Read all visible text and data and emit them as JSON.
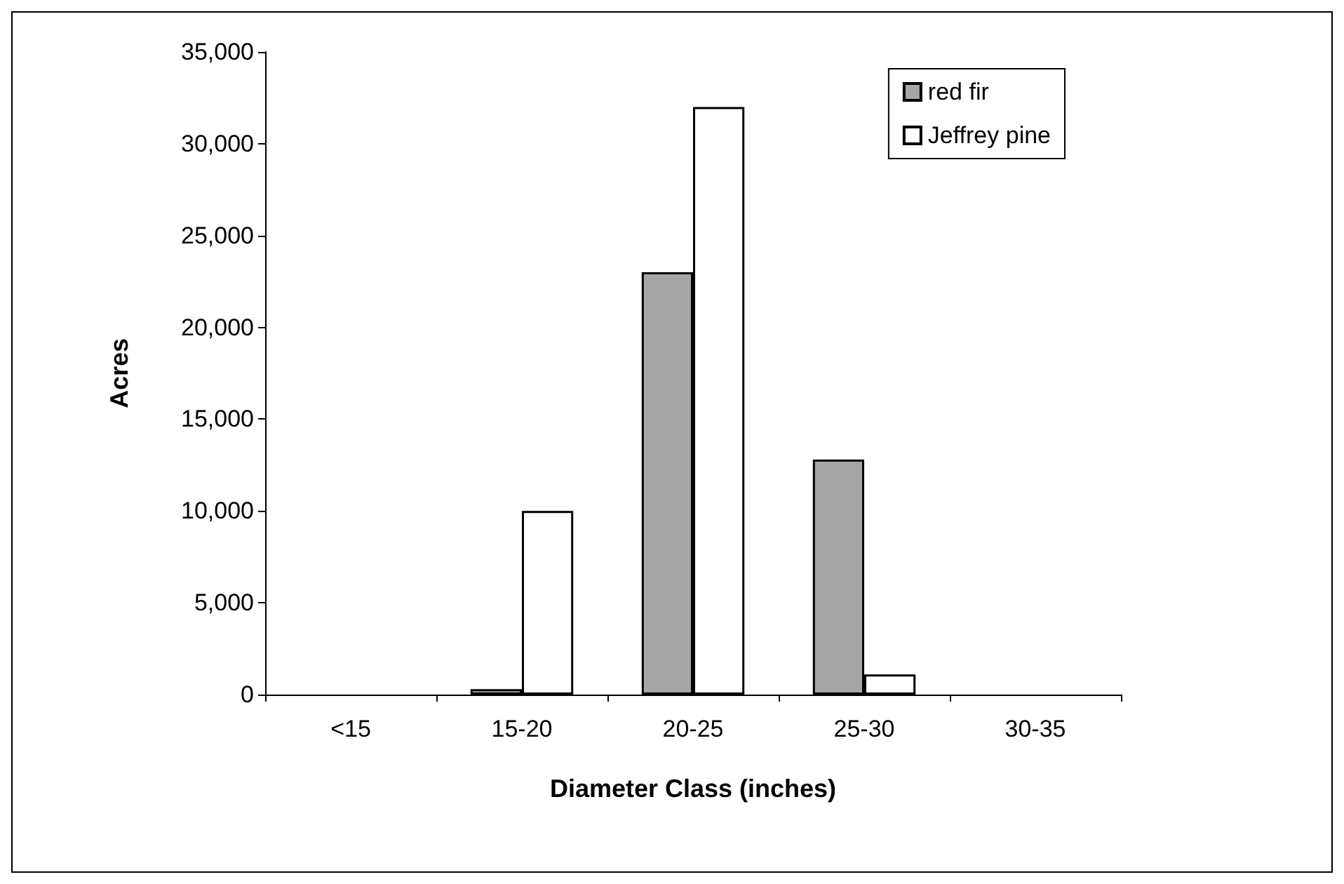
{
  "chart_data": {
    "type": "bar",
    "xlabel": "Diameter Class (inches)",
    "ylabel": "Acres",
    "categories": [
      "<15",
      "15-20",
      "20-25",
      "25-30",
      "30-35"
    ],
    "series": [
      {
        "name": "red fir",
        "color": "#a6a6a6",
        "values": [
          0,
          300,
          23000,
          12800,
          0
        ]
      },
      {
        "name": "Jeffrey pine",
        "color": "#ffffff",
        "values": [
          0,
          10000,
          32000,
          1100,
          0
        ]
      }
    ],
    "ylim": [
      0,
      35000
    ],
    "yticks": [
      {
        "value": 0,
        "label": "0"
      },
      {
        "value": 5000,
        "label": "5,000"
      },
      {
        "value": 10000,
        "label": "10,000"
      },
      {
        "value": 15000,
        "label": "15,000"
      },
      {
        "value": 20000,
        "label": "20,000"
      },
      {
        "value": 25000,
        "label": "25,000"
      },
      {
        "value": 30000,
        "label": "30,000"
      },
      {
        "value": 35000,
        "label": "35,000"
      }
    ],
    "grid": false,
    "legend": "top right"
  }
}
